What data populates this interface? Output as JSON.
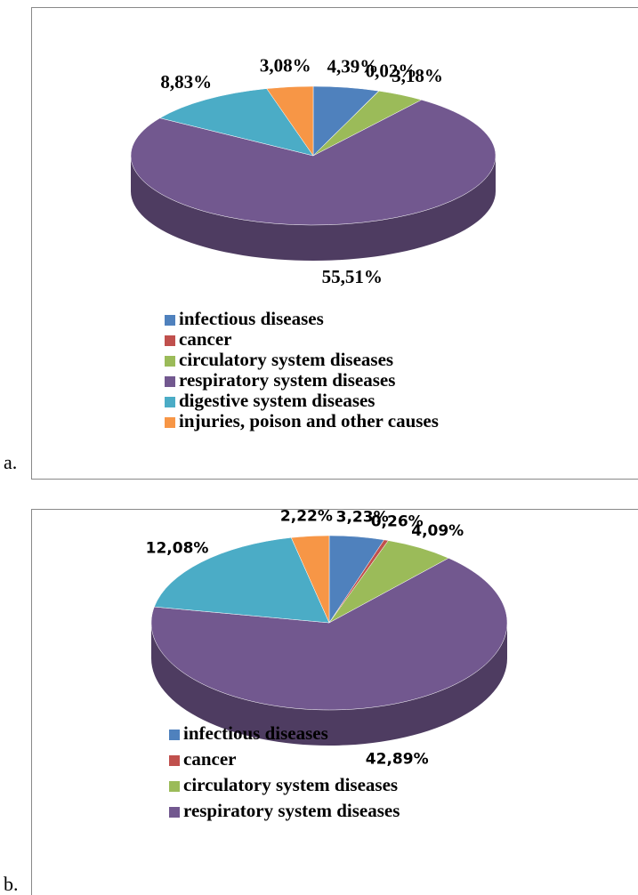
{
  "chart_data": [
    {
      "type": "pie",
      "caption": "a.",
      "categories": [
        "infectious diseases",
        "cancer",
        "circulatory system diseases",
        "respiratory system diseases",
        "digestive system diseases",
        "injuries, poison and other causes"
      ],
      "values": [
        4.39,
        0.02,
        3.18,
        55.51,
        8.83,
        3.08
      ],
      "value_labels": [
        "4,39%",
        "0,02%",
        "3,18%",
        "55,51%",
        "8,83%",
        "3,08%"
      ],
      "colors": [
        "#4f81bd",
        "#c0504d",
        "#9bbb59",
        "#72588f",
        "#4bacc6",
        "#f79646"
      ]
    },
    {
      "type": "pie",
      "caption": "b.",
      "categories": [
        "infectious diseases",
        "cancer",
        "circulatory system diseases",
        "respiratory system diseases",
        null,
        null
      ],
      "values": [
        3.23,
        0.26,
        4.09,
        42.89,
        12.08,
        2.22
      ],
      "value_labels": [
        "3,23%",
        "0,26%",
        "4,09%",
        "42,89%",
        "12,08%",
        "2,22%"
      ],
      "colors": [
        "#4f81bd",
        "#c0504d",
        "#9bbb59",
        "#72588f",
        "#4bacc6",
        "#f79646"
      ]
    }
  ]
}
